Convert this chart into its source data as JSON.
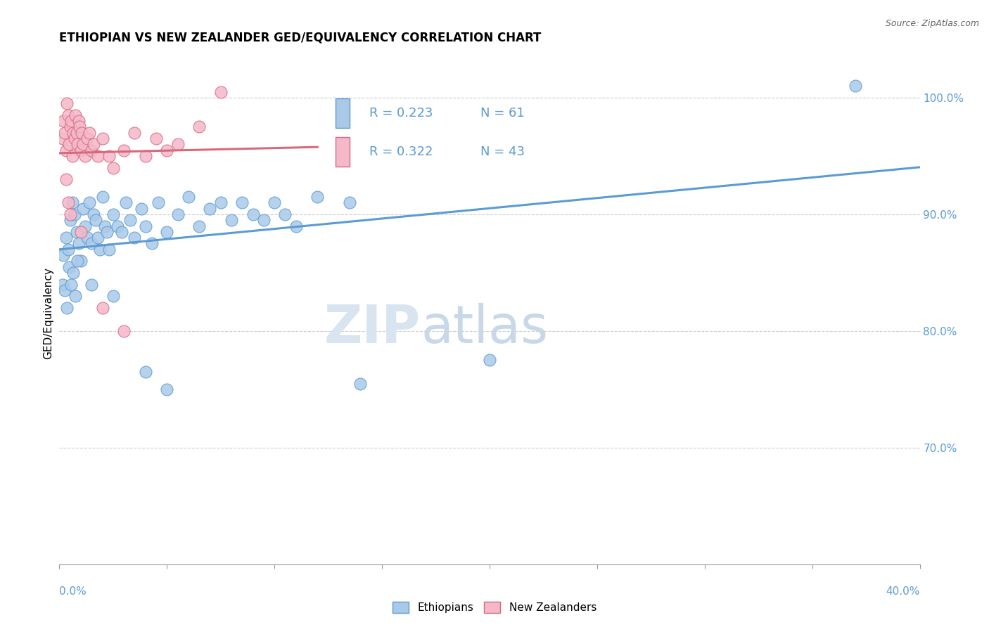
{
  "title": "ETHIOPIAN VS NEW ZEALANDER GED/EQUIVALENCY CORRELATION CHART",
  "source": "Source: ZipAtlas.com",
  "ylabel": "GED/Equivalency",
  "xmin": 0.0,
  "xmax": 40.0,
  "ymin": 60.0,
  "ymax": 103.0,
  "yticks": [
    70.0,
    80.0,
    90.0,
    100.0
  ],
  "ytick_labels": [
    "70.0%",
    "80.0%",
    "90.0%",
    "100.0%"
  ],
  "blue_R": 0.223,
  "blue_N": 61,
  "pink_R": 0.322,
  "pink_N": 43,
  "blue_color": "#aac9e8",
  "pink_color": "#f5b8cb",
  "blue_line_color": "#5b9bd5",
  "pink_line_color": "#d9687a",
  "watermark_zip": "ZIP",
  "watermark_atlas": "atlas",
  "blue_dots": [
    [
      0.2,
      86.5
    ],
    [
      0.3,
      88.0
    ],
    [
      0.4,
      87.0
    ],
    [
      0.5,
      89.5
    ],
    [
      0.6,
      91.0
    ],
    [
      0.7,
      90.0
    ],
    [
      0.8,
      88.5
    ],
    [
      0.9,
      87.5
    ],
    [
      1.0,
      86.0
    ],
    [
      1.1,
      90.5
    ],
    [
      1.2,
      89.0
    ],
    [
      1.3,
      88.0
    ],
    [
      1.4,
      91.0
    ],
    [
      1.5,
      87.5
    ],
    [
      1.6,
      90.0
    ],
    [
      1.7,
      89.5
    ],
    [
      1.8,
      88.0
    ],
    [
      1.9,
      87.0
    ],
    [
      2.0,
      91.5
    ],
    [
      2.1,
      89.0
    ],
    [
      2.2,
      88.5
    ],
    [
      2.3,
      87.0
    ],
    [
      2.5,
      90.0
    ],
    [
      2.7,
      89.0
    ],
    [
      2.9,
      88.5
    ],
    [
      3.1,
      91.0
    ],
    [
      3.3,
      89.5
    ],
    [
      3.5,
      88.0
    ],
    [
      3.8,
      90.5
    ],
    [
      4.0,
      89.0
    ],
    [
      4.3,
      87.5
    ],
    [
      4.6,
      91.0
    ],
    [
      5.0,
      88.5
    ],
    [
      5.5,
      90.0
    ],
    [
      6.0,
      91.5
    ],
    [
      6.5,
      89.0
    ],
    [
      7.0,
      90.5
    ],
    [
      7.5,
      91.0
    ],
    [
      8.0,
      89.5
    ],
    [
      8.5,
      91.0
    ],
    [
      9.0,
      90.0
    ],
    [
      9.5,
      89.5
    ],
    [
      10.0,
      91.0
    ],
    [
      10.5,
      90.0
    ],
    [
      11.0,
      89.0
    ],
    [
      12.0,
      91.5
    ],
    [
      13.5,
      91.0
    ],
    [
      0.15,
      84.0
    ],
    [
      0.25,
      83.5
    ],
    [
      0.35,
      82.0
    ],
    [
      0.45,
      85.5
    ],
    [
      0.55,
      84.0
    ],
    [
      0.65,
      85.0
    ],
    [
      0.75,
      83.0
    ],
    [
      0.85,
      86.0
    ],
    [
      1.5,
      84.0
    ],
    [
      2.5,
      83.0
    ],
    [
      4.0,
      76.5
    ],
    [
      5.0,
      75.0
    ],
    [
      14.0,
      75.5
    ],
    [
      20.0,
      77.5
    ],
    [
      37.0,
      101.0
    ]
  ],
  "pink_dots": [
    [
      0.15,
      96.5
    ],
    [
      0.2,
      98.0
    ],
    [
      0.25,
      97.0
    ],
    [
      0.3,
      95.5
    ],
    [
      0.35,
      99.5
    ],
    [
      0.4,
      98.5
    ],
    [
      0.45,
      96.0
    ],
    [
      0.5,
      97.5
    ],
    [
      0.55,
      98.0
    ],
    [
      0.6,
      95.0
    ],
    [
      0.65,
      97.0
    ],
    [
      0.7,
      96.5
    ],
    [
      0.75,
      98.5
    ],
    [
      0.8,
      97.0
    ],
    [
      0.85,
      96.0
    ],
    [
      0.9,
      98.0
    ],
    [
      0.95,
      97.5
    ],
    [
      1.0,
      95.5
    ],
    [
      1.05,
      97.0
    ],
    [
      1.1,
      96.0
    ],
    [
      1.2,
      95.0
    ],
    [
      1.3,
      96.5
    ],
    [
      1.4,
      97.0
    ],
    [
      1.5,
      95.5
    ],
    [
      1.6,
      96.0
    ],
    [
      1.8,
      95.0
    ],
    [
      2.0,
      96.5
    ],
    [
      2.3,
      95.0
    ],
    [
      2.5,
      94.0
    ],
    [
      3.0,
      95.5
    ],
    [
      3.5,
      97.0
    ],
    [
      4.0,
      95.0
    ],
    [
      4.5,
      96.5
    ],
    [
      5.0,
      95.5
    ],
    [
      5.5,
      96.0
    ],
    [
      6.5,
      97.5
    ],
    [
      7.5,
      100.5
    ],
    [
      0.3,
      93.0
    ],
    [
      0.4,
      91.0
    ],
    [
      0.5,
      90.0
    ],
    [
      1.0,
      88.5
    ],
    [
      2.0,
      82.0
    ],
    [
      3.0,
      80.0
    ]
  ]
}
